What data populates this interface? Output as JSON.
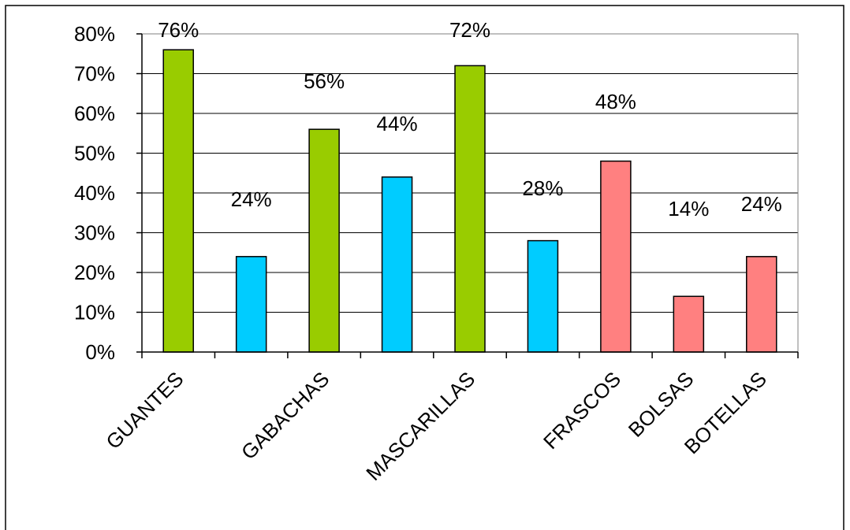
{
  "chart_data": {
    "type": "bar",
    "categories": [
      "GUANTES",
      "",
      "GABACHAS",
      "",
      "MASCARILLAS",
      "",
      "FRASCOS",
      "BOLSAS",
      "BOTELLAS"
    ],
    "values": [
      76,
      24,
      56,
      44,
      72,
      28,
      48,
      14,
      24
    ],
    "value_labels": [
      "76%",
      "24%",
      "56%",
      "44%",
      "72%",
      "28%",
      "48%",
      "14%",
      "24%"
    ],
    "bar_colors": [
      "#99cc00",
      "#00ccff",
      "#99cc00",
      "#00ccff",
      "#99cc00",
      "#00ccff",
      "#ff8080",
      "#ff8080",
      "#ff8080"
    ],
    "ylim": [
      0,
      80
    ],
    "yticks": [
      0,
      10,
      20,
      30,
      40,
      50,
      60,
      70,
      80
    ],
    "ytick_labels": [
      "0%",
      "10%",
      "20%",
      "30%",
      "40%",
      "50%",
      "60%",
      "70%",
      "80%"
    ],
    "grid": true,
    "legend": false,
    "title": "",
    "xlabel": "",
    "ylabel": ""
  }
}
